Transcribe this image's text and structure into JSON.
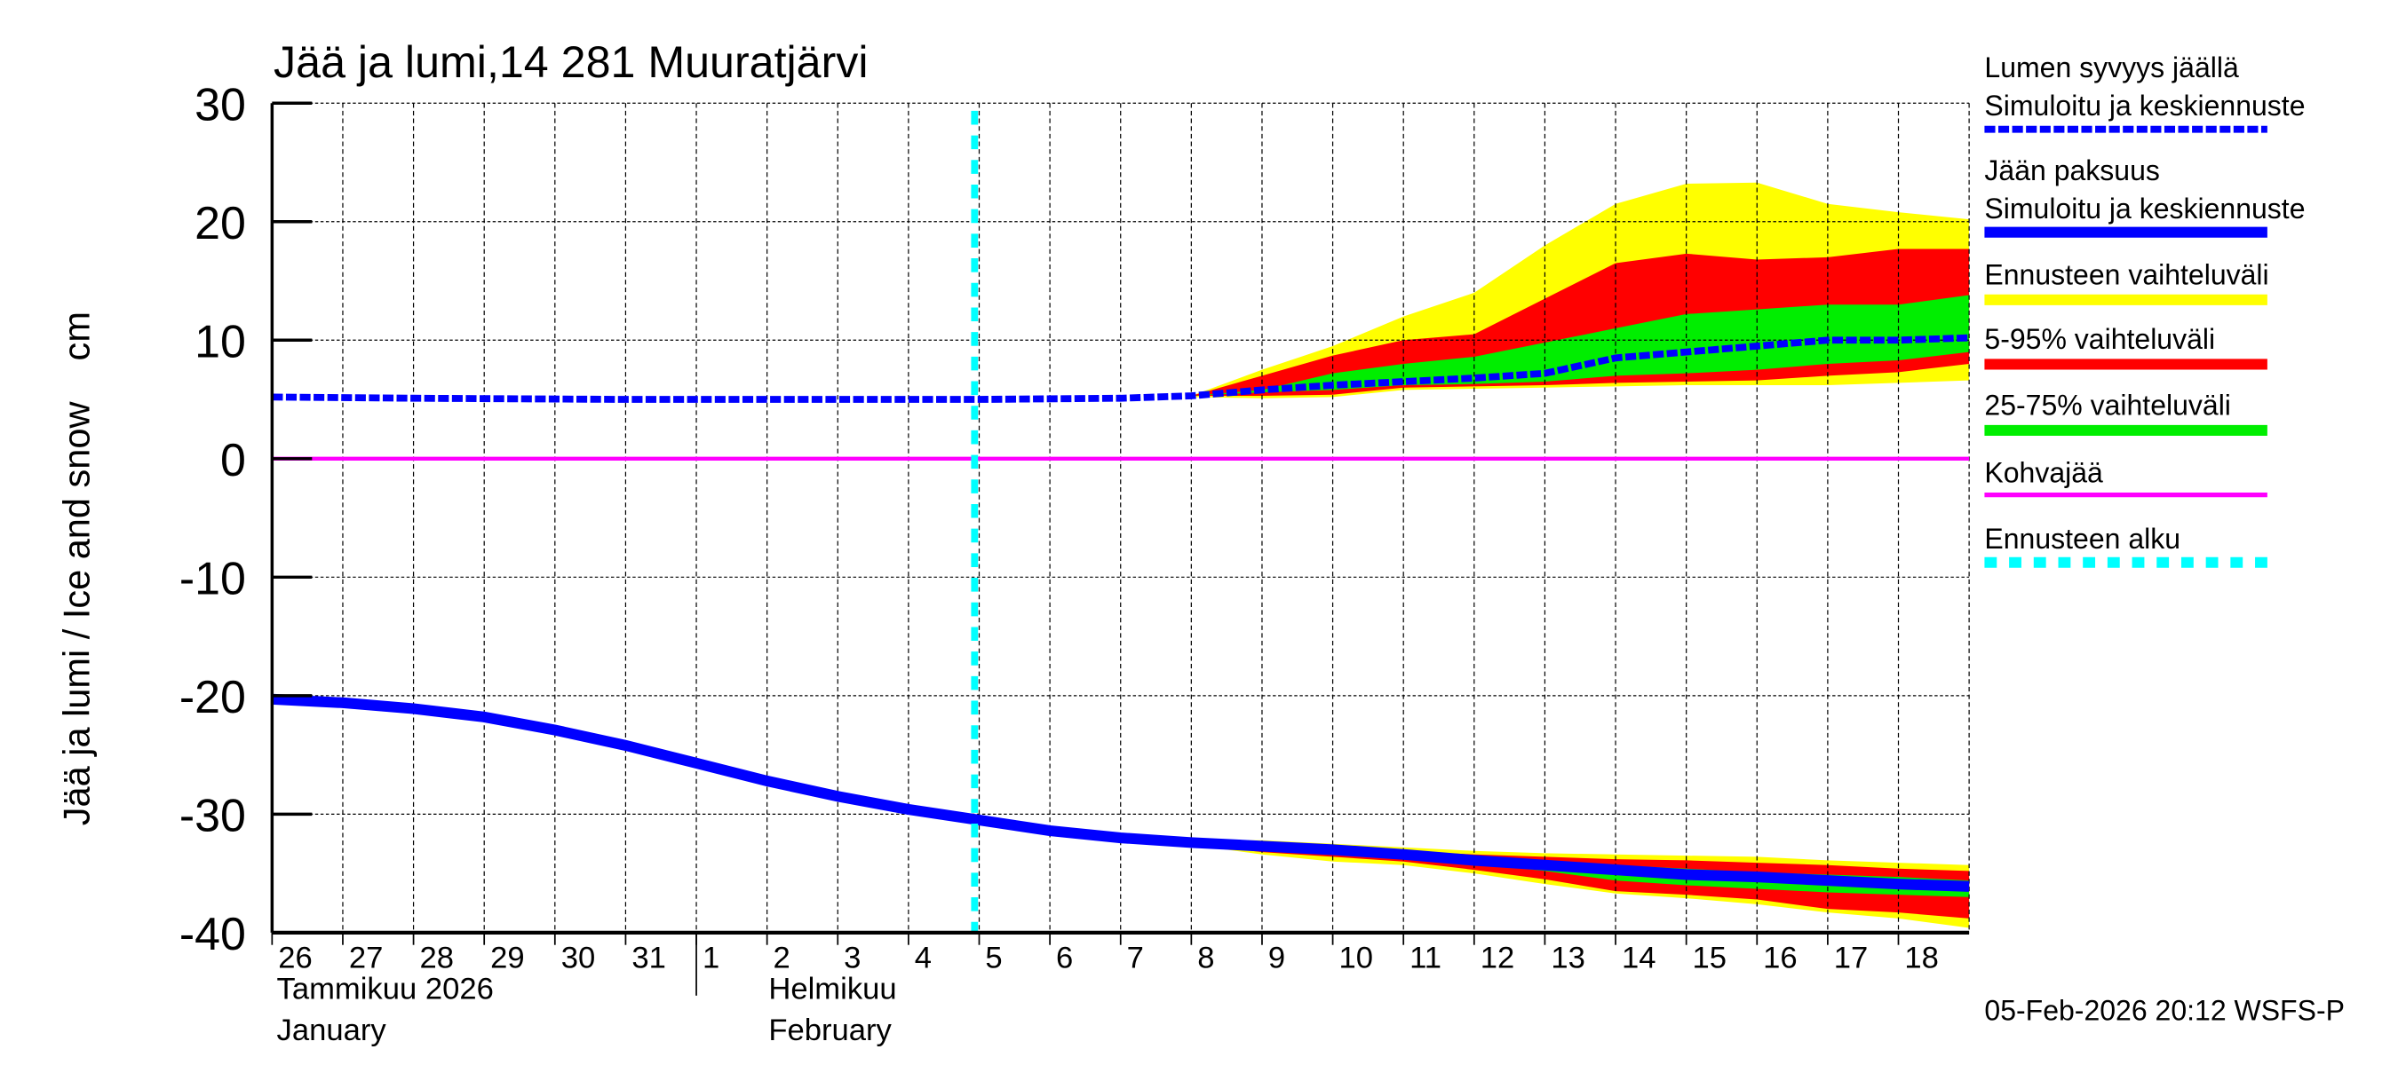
{
  "chart_data": {
    "type": "area",
    "title": "Jää ja lumi,14 281 Muuratjärvi",
    "ylabel": "Jää ja lumi / Ice and snow    cm",
    "ylim": [
      -40,
      30
    ],
    "yticks": [
      30,
      20,
      10,
      0,
      -10,
      -20,
      -30,
      -40
    ],
    "xlim": [
      "2026-01-26",
      "2026-02-19"
    ],
    "x_day_labels": [
      "26",
      "27",
      "28",
      "29",
      "30",
      "31",
      "1",
      "2",
      "3",
      "4",
      "5",
      "6",
      "7",
      "8",
      "9",
      "10",
      "11",
      "12",
      "13",
      "14",
      "15",
      "16",
      "17",
      "18"
    ],
    "month_labels": [
      {
        "fi": "Tammikuu  2026",
        "en": "January"
      },
      {
        "fi": "Helmikuu",
        "en": "February"
      }
    ],
    "grid": true,
    "forecast_start": "2026-02-05",
    "kohvajaa_level": 0,
    "snow_depth": {
      "x": [
        "2026-01-26",
        "2026-01-28",
        "2026-01-31",
        "2026-02-03",
        "2026-02-05",
        "2026-02-07",
        "2026-02-08",
        "2026-02-09",
        "2026-02-10",
        "2026-02-11",
        "2026-02-12",
        "2026-02-13",
        "2026-02-14",
        "2026-02-15",
        "2026-02-16",
        "2026-02-17",
        "2026-02-18",
        "2026-02-19"
      ],
      "median": [
        5.2,
        5.1,
        5.0,
        5.0,
        5.0,
        5.1,
        5.3,
        5.8,
        6.2,
        6.5,
        6.8,
        7.2,
        8.5,
        9.0,
        9.5,
        10.0,
        10.0,
        10.2
      ]
    },
    "snow_bands": {
      "x": [
        "2026-02-08",
        "2026-02-09",
        "2026-02-10",
        "2026-02-11",
        "2026-02-12",
        "2026-02-13",
        "2026-02-14",
        "2026-02-15",
        "2026-02-16",
        "2026-02-17",
        "2026-02-18",
        "2026-02-19"
      ],
      "min": [
        5.2,
        5.1,
        5.2,
        5.8,
        5.9,
        6.0,
        6.1,
        6.2,
        6.2,
        6.2,
        6.4,
        6.6
      ],
      "p5": [
        5.3,
        5.3,
        5.4,
        6.0,
        6.1,
        6.2,
        6.4,
        6.5,
        6.6,
        7.0,
        7.3,
        8.0
      ],
      "p25": [
        5.3,
        5.6,
        5.8,
        6.2,
        6.3,
        6.5,
        7.0,
        7.2,
        7.5,
        8.0,
        8.3,
        9.0
      ],
      "p75": [
        5.3,
        5.8,
        7.2,
        8.0,
        8.6,
        9.8,
        11.0,
        12.2,
        12.6,
        13.0,
        13.0,
        13.8
      ],
      "p95": [
        5.3,
        7.0,
        8.7,
        10.0,
        10.5,
        13.5,
        16.5,
        17.3,
        16.8,
        17.0,
        17.7,
        17.7
      ],
      "max": [
        5.3,
        7.5,
        9.5,
        12.0,
        14.0,
        18.0,
        21.5,
        23.2,
        23.3,
        21.5,
        20.8,
        20.2
      ]
    },
    "ice_thickness": {
      "x": [
        "2026-01-26",
        "2026-01-27",
        "2026-01-28",
        "2026-01-29",
        "2026-01-30",
        "2026-01-31",
        "2026-02-01",
        "2026-02-02",
        "2026-02-03",
        "2026-02-04",
        "2026-02-05",
        "2026-02-06",
        "2026-02-07",
        "2026-02-08",
        "2026-02-09",
        "2026-02-10",
        "2026-02-11",
        "2026-02-12",
        "2026-02-13",
        "2026-02-14",
        "2026-02-15",
        "2026-02-16",
        "2026-02-17",
        "2026-02-18",
        "2026-02-19"
      ],
      "median": [
        -20.3,
        -20.6,
        -21.1,
        -21.8,
        -22.9,
        -24.2,
        -25.7,
        -27.2,
        -28.5,
        -29.6,
        -30.5,
        -31.4,
        -32.0,
        -32.4,
        -32.7,
        -33.0,
        -33.4,
        -33.9,
        -34.3,
        -34.7,
        -35.1,
        -35.3,
        -35.6,
        -35.9,
        -36.1
      ]
    },
    "ice_bands": {
      "x": [
        "2026-02-08",
        "2026-02-09",
        "2026-02-10",
        "2026-02-11",
        "2026-02-12",
        "2026-02-13",
        "2026-02-14",
        "2026-02-15",
        "2026-02-16",
        "2026-02-17",
        "2026-02-18",
        "2026-02-19"
      ],
      "max": [
        -32.2,
        -32.2,
        -32.5,
        -32.8,
        -33.1,
        -33.3,
        -33.4,
        -33.5,
        -33.6,
        -33.9,
        -34.1,
        -34.3
      ],
      "p95": [
        -32.3,
        -32.5,
        -32.8,
        -33.1,
        -33.4,
        -33.6,
        -33.8,
        -33.9,
        -34.1,
        -34.3,
        -34.6,
        -34.8
      ],
      "p75": [
        -32.4,
        -32.6,
        -33.0,
        -33.3,
        -33.7,
        -34.0,
        -34.3,
        -34.6,
        -34.9,
        -35.1,
        -35.3,
        -35.6
      ],
      "p25": [
        -32.4,
        -32.9,
        -33.3,
        -33.6,
        -34.2,
        -34.8,
        -35.6,
        -36.0,
        -36.3,
        -36.6,
        -36.8,
        -37.0
      ],
      "p5": [
        -32.5,
        -33.2,
        -33.6,
        -34.0,
        -34.7,
        -35.5,
        -36.5,
        -36.8,
        -37.2,
        -38.0,
        -38.3,
        -38.8
      ],
      "min": [
        -32.6,
        -33.4,
        -34.0,
        -34.3,
        -35.0,
        -35.9,
        -36.7,
        -37.1,
        -37.6,
        -38.3,
        -38.8,
        -39.6
      ]
    },
    "legend": [
      {
        "label": "Lumen syvyys jäällä",
        "label2": "Simuloitu ja keskiennuste",
        "color": "#0000ff",
        "style": "dashed"
      },
      {
        "label": "Jään paksuus",
        "label2": "Simuloitu ja keskiennuste",
        "color": "#0000ff",
        "style": "solid"
      },
      {
        "label": "Ennusteen vaihteluväli",
        "color": "#ffff00",
        "style": "solid"
      },
      {
        "label": "5-95% vaihteluväli",
        "color": "#ff0000",
        "style": "solid"
      },
      {
        "label": "25-75% vaihteluväli",
        "color": "#00ee00",
        "style": "solid"
      },
      {
        "label": "Kohvajää",
        "color": "#ff00ff",
        "style": "solid"
      },
      {
        "label": "Ennusteen alku",
        "color": "#00ffff",
        "style": "dashed"
      }
    ],
    "legend_placement": "right",
    "timestamp": "05-Feb-2026 20:12 WSFS-P"
  }
}
